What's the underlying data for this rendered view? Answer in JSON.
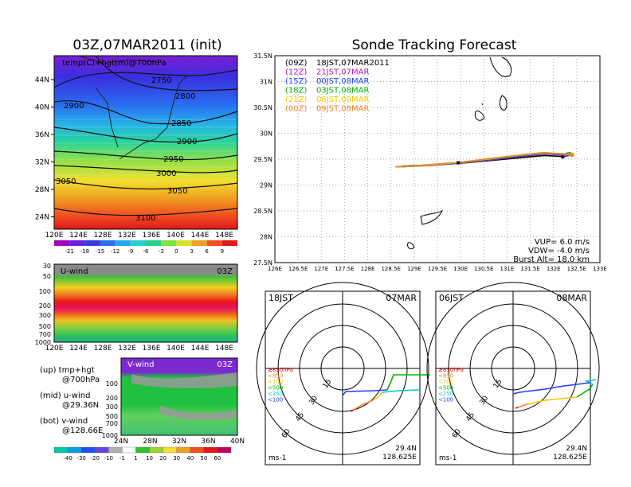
{
  "left_title": "03Z,07MAR2011 (init)",
  "right_title": "Sonde Tracking Forecast",
  "map_panel": {
    "label": "temp(C)+hgt(m)@700hPa",
    "lat_labels": [
      "44N",
      "40N",
      "36N",
      "32N",
      "28N",
      "24N"
    ],
    "lon_labels": [
      "120E",
      "124E",
      "128E",
      "132E",
      "136E",
      "140E",
      "144E",
      "148E"
    ],
    "contours": [
      "2750",
      "2800",
      "2850",
      "2900",
      "2950",
      "3000",
      "3050",
      "3100",
      "2900",
      "3050"
    ],
    "colorbar": [
      "-21",
      "-18",
      "-15",
      "-12",
      "-9",
      "-6",
      "-3",
      "0",
      "3",
      "6",
      "9"
    ]
  },
  "uwind_panel": {
    "label": "U-wind",
    "time": "03Z",
    "p_labels": [
      "30",
      "50",
      "100",
      "200",
      "300",
      "500",
      "700",
      "1000"
    ],
    "lon_labels": [
      "120E",
      "124E",
      "128E",
      "132E",
      "136E",
      "140E",
      "144E",
      "148E"
    ]
  },
  "vwind_panel": {
    "label": "V-wind",
    "time": "03Z",
    "p_labels": [
      "100",
      "200",
      "300",
      "500",
      "700",
      "1000"
    ],
    "lat_labels": [
      "24N",
      "28N",
      "32N",
      "36N",
      "40N"
    ]
  },
  "legend_notes": {
    "up": "(up) tmp+hgt",
    "up2": "@700hPa",
    "mid": "(mid) u-wind",
    "mid2": "@29.36N",
    "bot": "(bot) v-wind",
    "bot2": "@128.66E"
  },
  "wind_colorbar": [
    "-40",
    "-30",
    "-20",
    "-10",
    "-1",
    "1",
    "10",
    "20",
    "30",
    "40",
    "50",
    "60"
  ],
  "track_panel": {
    "lat_labels": [
      "31.5N",
      "31N",
      "30.5N",
      "30N",
      "29.5N",
      "29N",
      "28.5N",
      "28N",
      "27.5N"
    ],
    "lon_labels": [
      "126E",
      "126.5E",
      "127E",
      "127.5E",
      "128E",
      "128.5E",
      "129E",
      "129.5E",
      "130E",
      "130.5E",
      "131E",
      "131.5E",
      "132E",
      "132.5E",
      "133E"
    ],
    "legend": [
      {
        "code": "(09Z)",
        "text": "18JST,07MAR2011",
        "color": "#000000"
      },
      {
        "code": "(12Z)",
        "text": "21JST,07MAR",
        "color": "#b01cb0"
      },
      {
        "code": "(15Z)",
        "text": "00JST,08MAR",
        "color": "#1e3cff"
      },
      {
        "code": "(18Z)",
        "text": "03JST,08MAR",
        "color": "#00b400"
      },
      {
        "code": "(21Z)",
        "text": "06JST,08MAR",
        "color": "#f0c800"
      },
      {
        "code": "(00Z)",
        "text": "09JST,08MAR",
        "color": "#f08228"
      }
    ],
    "vup": "VUP=  6.0  m/s",
    "vdw": "VDW= -4.0  m/s",
    "burst": "Burst Alt= 18.0  km"
  },
  "polar_left": {
    "time": "18JST",
    "date": "07MAR",
    "rings": [
      "15",
      "30",
      "45",
      "60"
    ],
    "unit": "ms-1",
    "lat": "29.4N",
    "lon": "128.625E",
    "levels": [
      {
        "text": "≥850hPa",
        "color": "#e00000"
      },
      {
        "text": "<850",
        "color": "#f08228"
      },
      {
        "text": "<700",
        "color": "#f0c800"
      },
      {
        "text": "<500",
        "color": "#00b400"
      },
      {
        "text": "<250",
        "color": "#00c8c8"
      },
      {
        "text": "<100",
        "color": "#1e3cff"
      }
    ]
  },
  "polar_right": {
    "time": "06JST",
    "date": "08MAR",
    "rings": [
      "15",
      "30",
      "45",
      "60"
    ],
    "unit": "ms-1",
    "lat": "29.4N",
    "lon": "128.625E",
    "levels": [
      {
        "text": "≥850hPa",
        "color": "#e00000"
      },
      {
        "text": "<850",
        "color": "#f08228"
      },
      {
        "text": "<700",
        "color": "#f0c800"
      },
      {
        "text": "<500",
        "color": "#00b400"
      },
      {
        "text": "<250",
        "color": "#00c8c8"
      },
      {
        "text": "<100",
        "color": "#1e3cff"
      }
    ]
  },
  "chart_data": [
    {
      "type": "line",
      "title": "Sonde Tracking Forecast",
      "xlim": [
        126,
        133
      ],
      "ylim": [
        27.5,
        31.5
      ],
      "series": [
        {
          "name": "(09Z) 18JST,07MAR2011",
          "color": "#000000",
          "x": [
            128.6,
            128.9,
            129.4,
            130.0,
            130.6,
            131.2,
            131.8,
            132.2
          ],
          "y": [
            29.35,
            29.37,
            29.39,
            29.42,
            29.47,
            29.52,
            29.57,
            29.55
          ]
        },
        {
          "name": "(12Z) 21JST,07MAR",
          "color": "#b01cb0",
          "x": [
            128.6,
            128.9,
            129.4,
            130.0,
            130.6,
            131.2,
            131.8,
            132.25
          ],
          "y": [
            29.35,
            29.36,
            29.38,
            29.42,
            29.48,
            29.54,
            29.6,
            29.58
          ]
        },
        {
          "name": "(15Z) 00JST,08MAR",
          "color": "#1e3cff",
          "x": [
            128.6,
            128.9,
            129.4,
            130.0,
            130.6,
            131.2,
            131.8,
            132.3
          ],
          "y": [
            29.35,
            29.36,
            29.39,
            29.43,
            29.49,
            29.55,
            29.61,
            29.59
          ]
        },
        {
          "name": "(18Z) 03JST,08MAR",
          "color": "#00b400",
          "x": [
            128.6,
            128.9,
            129.4,
            130.0,
            130.6,
            131.2,
            131.8,
            132.35
          ],
          "y": [
            29.35,
            29.36,
            29.39,
            29.43,
            29.5,
            29.56,
            29.62,
            29.6
          ]
        },
        {
          "name": "(21Z) 06JST,08MAR",
          "color": "#f0c800",
          "x": [
            128.6,
            128.9,
            129.4,
            130.0,
            130.6,
            131.2,
            131.8,
            132.4
          ],
          "y": [
            29.35,
            29.36,
            29.39,
            29.44,
            29.5,
            29.57,
            29.62,
            29.59
          ]
        },
        {
          "name": "(00Z) 09JST,08MAR",
          "color": "#f08228",
          "x": [
            128.6,
            128.9,
            129.4,
            130.0,
            130.6,
            131.2,
            131.8,
            132.4
          ],
          "y": [
            29.35,
            29.36,
            29.4,
            29.44,
            29.51,
            29.57,
            29.63,
            29.58
          ]
        }
      ]
    }
  ]
}
